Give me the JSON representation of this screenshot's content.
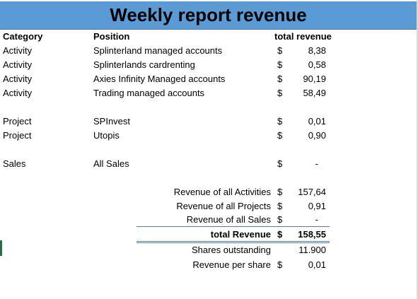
{
  "title": "Weekly report revenue",
  "headers": {
    "category": "Category",
    "position": "Position",
    "total": "total revenue"
  },
  "currency_symbol": "$",
  "rows": [
    {
      "category": "Activity",
      "position": "Splinterland managed accounts",
      "value": "8,38"
    },
    {
      "category": "Activity",
      "position": "Splinterlands cardrenting",
      "value": "0,58"
    },
    {
      "category": "Activity",
      "position": "Axies Infinity Managed accounts",
      "value": "90,19"
    },
    {
      "category": "Activity",
      "position": "Trading managed accounts",
      "value": "58,49"
    },
    {
      "category": "Project",
      "position": "SPInvest",
      "value": "0,01"
    },
    {
      "category": "Project",
      "position": "Utopis",
      "value": "0,90"
    },
    {
      "category": "Sales",
      "position": "All Sales",
      "value": "-"
    }
  ],
  "summary": {
    "activities_label": "Revenue of all Activities",
    "activities_value": "157,64",
    "projects_label": "Revenue of all Projects",
    "projects_value": "0,91",
    "sales_label": "Revenue of all Sales",
    "sales_value": "-",
    "total_label": "total Revenue",
    "total_value": "158,55",
    "shares_label": "Shares outstanding",
    "shares_value": "11.900",
    "per_share_label": "Revenue per share",
    "per_share_value": "0,01"
  },
  "colors": {
    "title_bg": "#5b9bd5",
    "rule": "#4a7fb0"
  }
}
